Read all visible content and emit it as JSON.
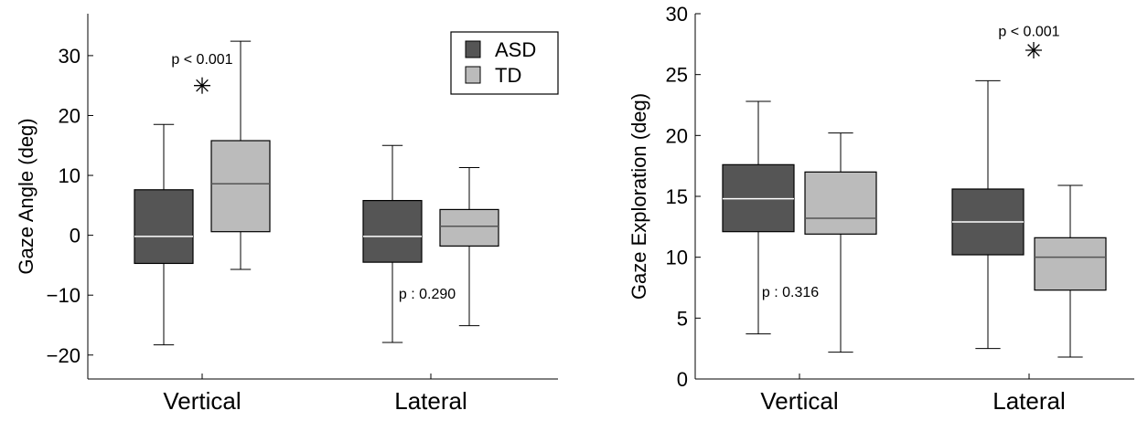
{
  "colors": {
    "asd": "#555555",
    "td": "#bbbbbb",
    "median_asd": "#ffffff",
    "median_td": "#555555",
    "axis": "#000000"
  },
  "legend": {
    "items": [
      {
        "label": "ASD",
        "color": "#555555"
      },
      {
        "label": "TD",
        "color": "#bbbbbb"
      }
    ],
    "placement": "top-right"
  },
  "chart_data": [
    {
      "type": "box",
      "ylabel": "Gaze Angle (deg)",
      "xlabel": "",
      "ylim": [
        -24,
        37
      ],
      "yticks": [
        -20,
        -10,
        0,
        10,
        20,
        30
      ],
      "ytick_labels": [
        "−20",
        "−10",
        "0",
        "10",
        "20",
        "30"
      ],
      "categories": [
        "Vertical",
        "Lateral"
      ],
      "series": [
        {
          "name": "ASD",
          "boxes": [
            {
              "whisker_low": -18.3,
              "q1": -4.7,
              "median": -0.2,
              "q3": 7.6,
              "whisker_high": 18.5
            },
            {
              "whisker_low": -17.9,
              "q1": -4.5,
              "median": -0.2,
              "q3": 5.8,
              "whisker_high": 15.0
            }
          ]
        },
        {
          "name": "TD",
          "boxes": [
            {
              "whisker_low": -5.7,
              "q1": 0.6,
              "median": 8.6,
              "q3": 15.8,
              "whisker_high": 32.4
            },
            {
              "whisker_low": -15.1,
              "q1": -1.8,
              "median": 1.5,
              "q3": 4.3,
              "whisker_high": 11.3
            }
          ]
        }
      ],
      "annotations": [
        {
          "text": "p < 0.001",
          "category": 0,
          "y": 29.5,
          "significant": true,
          "star_y": 25.0
        },
        {
          "text": "p : 0.290",
          "category": 1,
          "y": -9.7,
          "significant": false
        }
      ],
      "legend": true
    },
    {
      "type": "box",
      "ylabel": "Gaze Exploration (deg)",
      "xlabel": "",
      "ylim": [
        0,
        30
      ],
      "yticks": [
        0,
        5,
        10,
        15,
        20,
        25,
        30
      ],
      "ytick_labels": [
        "0",
        "5",
        "10",
        "15",
        "20",
        "25",
        "30"
      ],
      "categories": [
        "Vertical",
        "Lateral"
      ],
      "series": [
        {
          "name": "ASD",
          "boxes": [
            {
              "whisker_low": 3.7,
              "q1": 12.1,
              "median": 14.8,
              "q3": 17.6,
              "whisker_high": 22.8
            },
            {
              "whisker_low": 2.5,
              "q1": 10.2,
              "median": 12.9,
              "q3": 15.6,
              "whisker_high": 24.5
            }
          ]
        },
        {
          "name": "TD",
          "boxes": [
            {
              "whisker_low": 2.2,
              "q1": 11.9,
              "median": 13.2,
              "q3": 17.0,
              "whisker_high": 20.2
            },
            {
              "whisker_low": 1.8,
              "q1": 7.3,
              "median": 10.0,
              "q3": 11.6,
              "whisker_high": 15.9
            }
          ]
        }
      ],
      "annotations": [
        {
          "text": "p : 0.316",
          "category": 0,
          "y": 7.2,
          "significant": false
        },
        {
          "text": "p < 0.001",
          "category": 1,
          "y": 28.6,
          "significant": true,
          "star_y": 27.0
        }
      ],
      "legend": false
    }
  ]
}
